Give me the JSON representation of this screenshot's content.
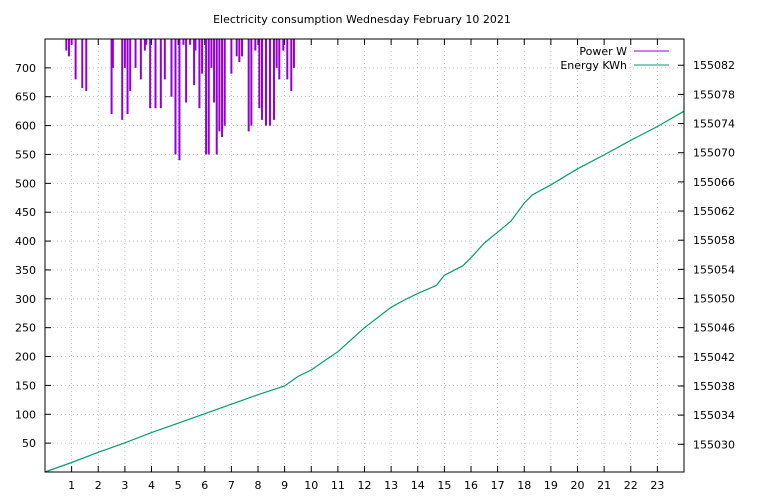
{
  "chart_data": {
    "type": "line",
    "title": "Electricity consumption Wednesday February 10 2021",
    "xlabel": "",
    "ylabel": "",
    "y2label": "",
    "grid": true,
    "legend_position": "top-right",
    "xlim": [
      0,
      24
    ],
    "ylim": [
      0,
      750
    ],
    "y2lim": [
      155026.2,
      155085.6
    ],
    "x_ticks": [
      1,
      2,
      3,
      4,
      5,
      6,
      7,
      8,
      9,
      10,
      11,
      12,
      13,
      14,
      15,
      16,
      17,
      18,
      19,
      20,
      21,
      22,
      23
    ],
    "y_ticks": [
      50,
      100,
      150,
      200,
      250,
      300,
      350,
      400,
      450,
      500,
      550,
      600,
      650,
      700
    ],
    "y2_ticks": [
      155030,
      155034,
      155038,
      155042,
      155046,
      155050,
      155054,
      155058,
      155062,
      155066,
      155070,
      155074,
      155078,
      155082
    ],
    "colors": {
      "power": "#9400d3",
      "energy": "#009e73"
    },
    "series": [
      {
        "name": "Power W",
        "axis": "left",
        "style": "impulses",
        "x": [
          0.8,
          0.9,
          1.0,
          1.15,
          1.4,
          1.55,
          2.5,
          2.55,
          2.9,
          3.0,
          3.1,
          3.2,
          3.4,
          3.6,
          3.75,
          3.8,
          3.95,
          4.15,
          4.35,
          4.5,
          4.75,
          4.9,
          5.05,
          5.2,
          5.3,
          5.45,
          5.6,
          5.65,
          5.8,
          5.9,
          6.05,
          6.15,
          6.25,
          6.35,
          6.45,
          6.55,
          6.65,
          6.75,
          7.0,
          7.2,
          7.3,
          7.4,
          7.65,
          7.75,
          7.9,
          8.05,
          8.15,
          8.3,
          8.45,
          8.6,
          8.7,
          8.8,
          8.95,
          9.1,
          9.25,
          9.35
        ],
        "values": [
          730,
          720,
          740,
          680,
          665,
          660,
          620,
          700,
          610,
          700,
          620,
          660,
          700,
          680,
          730,
          740,
          630,
          630,
          630,
          680,
          650,
          550,
          540,
          740,
          640,
          740,
          670,
          730,
          630,
          690,
          550,
          550,
          700,
          640,
          550,
          590,
          580,
          600,
          690,
          720,
          710,
          720,
          590,
          600,
          730,
          630,
          610,
          600,
          600,
          610,
          700,
          680,
          730,
          680,
          660,
          700
        ]
      },
      {
        "name": "Energy KWh",
        "axis": "right",
        "style": "line",
        "x": [
          0,
          1,
          2,
          3,
          4,
          5,
          6,
          7,
          8,
          9,
          9.5,
          10,
          11,
          12,
          13,
          13.5,
          14,
          14.7,
          15,
          15.7,
          16,
          16.5,
          17,
          17.5,
          18,
          18.3,
          19,
          20,
          21,
          22,
          23,
          24
        ],
        "values": [
          155026.2,
          155027.5,
          155028.9,
          155030.2,
          155031.6,
          155032.9,
          155034.2,
          155035.5,
          155036.8,
          155038.0,
          155039.3,
          155040.2,
          155042.7,
          155046.0,
          155048.8,
          155049.8,
          155050.7,
          155051.8,
          155053.2,
          155054.5,
          155055.6,
          155057.6,
          155059.1,
          155060.6,
          155063.1,
          155064.2,
          155065.6,
          155067.8,
          155069.7,
          155071.7,
          155073.6,
          155075.7
        ]
      }
    ]
  }
}
